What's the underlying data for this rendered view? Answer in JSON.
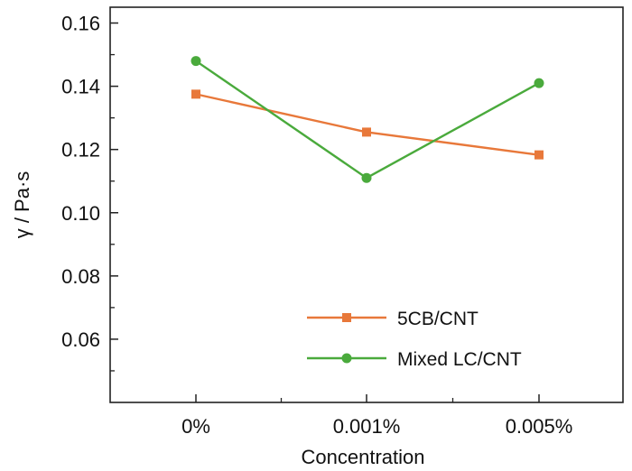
{
  "chart_data": {
    "type": "line",
    "title": "",
    "xlabel": "Concentration",
    "ylabel": "γ / Pa·s",
    "categories": [
      "0%",
      "0.001%",
      "0.005%"
    ],
    "ylim": [
      0.04,
      0.165
    ],
    "yticks": [
      0.06,
      0.08,
      0.1,
      0.12,
      0.14,
      0.16
    ],
    "ytick_labels": [
      "0.06",
      "0.08",
      "0.10",
      "0.12",
      "0.14",
      "0.16"
    ],
    "grid": false,
    "legend_position": "bottom-right",
    "series": [
      {
        "name": "5CB/CNT",
        "values": [
          0.1375,
          0.1255,
          0.1183
        ],
        "color": "#e8783a",
        "marker": "square"
      },
      {
        "name": "Mixed LC/CNT",
        "values": [
          0.148,
          0.111,
          0.141
        ],
        "color": "#4aaa3c",
        "marker": "circle"
      }
    ]
  }
}
